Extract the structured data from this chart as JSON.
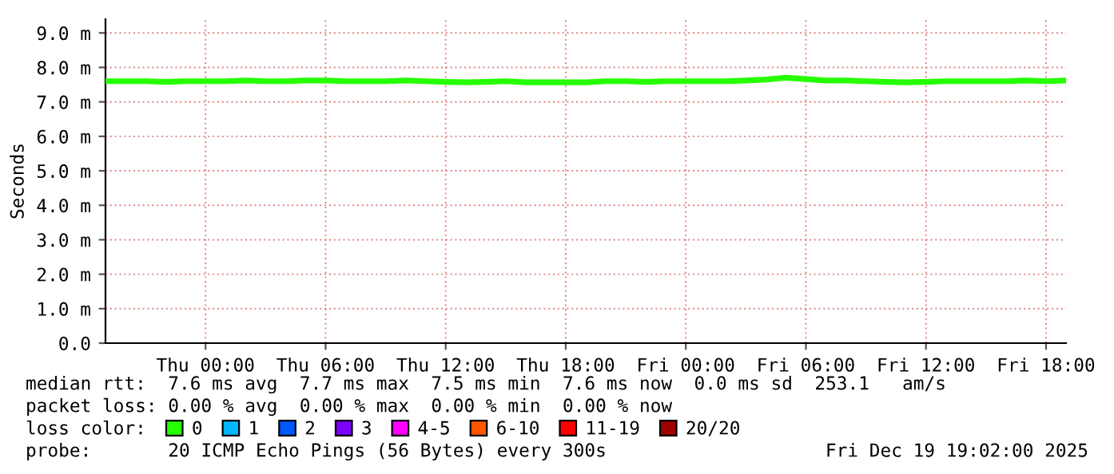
{
  "chart_data": {
    "type": "line",
    "ylabel": "Seconds",
    "x": [
      "2025-12-17T19:00",
      "2025-12-17T20:00",
      "2025-12-17T21:00",
      "2025-12-17T22:00",
      "2025-12-17T23:00",
      "2025-12-18T00:00",
      "2025-12-18T01:00",
      "2025-12-18T02:00",
      "2025-12-18T03:00",
      "2025-12-18T04:00",
      "2025-12-18T05:00",
      "2025-12-18T06:00",
      "2025-12-18T07:00",
      "2025-12-18T08:00",
      "2025-12-18T09:00",
      "2025-12-18T10:00",
      "2025-12-18T11:00",
      "2025-12-18T12:00",
      "2025-12-18T13:00",
      "2025-12-18T14:00",
      "2025-12-18T15:00",
      "2025-12-18T16:00",
      "2025-12-18T17:00",
      "2025-12-18T18:00",
      "2025-12-18T19:00",
      "2025-12-18T20:00",
      "2025-12-18T21:00",
      "2025-12-18T22:00",
      "2025-12-18T23:00",
      "2025-12-19T00:00",
      "2025-12-19T01:00",
      "2025-12-19T02:00",
      "2025-12-19T03:00",
      "2025-12-19T04:00",
      "2025-12-19T05:00",
      "2025-12-19T06:00",
      "2025-12-19T07:00",
      "2025-12-19T08:00",
      "2025-12-19T09:00",
      "2025-12-19T10:00",
      "2025-12-19T11:00",
      "2025-12-19T12:00",
      "2025-12-19T13:00",
      "2025-12-19T14:00",
      "2025-12-19T15:00",
      "2025-12-19T16:00",
      "2025-12-19T17:00",
      "2025-12-19T18:00",
      "2025-12-19T19:00"
    ],
    "series": [
      {
        "name": "0",
        "color": "#26ff00",
        "values": [
          7.6,
          7.6,
          7.6,
          7.58,
          7.6,
          7.6,
          7.6,
          7.62,
          7.6,
          7.6,
          7.62,
          7.62,
          7.6,
          7.6,
          7.6,
          7.62,
          7.6,
          7.58,
          7.57,
          7.58,
          7.6,
          7.57,
          7.57,
          7.57,
          7.57,
          7.6,
          7.6,
          7.58,
          7.6,
          7.6,
          7.6,
          7.6,
          7.62,
          7.65,
          7.7,
          7.66,
          7.62,
          7.62,
          7.6,
          7.58,
          7.57,
          7.58,
          7.6,
          7.6,
          7.6,
          7.6,
          7.62,
          7.6,
          7.62
        ]
      },
      {
        "name": "1",
        "color": "#00b8ff",
        "values": [
          null,
          null,
          null,
          null,
          null,
          null,
          null,
          null,
          null,
          null,
          null,
          null,
          null,
          null,
          null,
          null,
          null,
          null,
          null,
          null,
          null,
          null,
          null,
          null,
          null,
          null,
          null,
          null,
          null,
          null,
          null,
          null,
          null,
          null,
          null,
          null,
          null,
          null,
          null,
          null,
          null,
          null,
          null,
          null,
          null,
          null,
          null,
          null,
          null
        ]
      },
      {
        "name": "2",
        "color": "#0059ff",
        "values": [
          null,
          null,
          null,
          null,
          null,
          null,
          null,
          null,
          null,
          null,
          null,
          null,
          null,
          null,
          null,
          null,
          null,
          null,
          null,
          null,
          null,
          null,
          null,
          null,
          null,
          null,
          null,
          null,
          null,
          null,
          null,
          null,
          null,
          null,
          null,
          null,
          null,
          null,
          null,
          null,
          null,
          null,
          null,
          null,
          null,
          null,
          null,
          null,
          null
        ]
      },
      {
        "name": "3",
        "color": "#7e00ff",
        "values": [
          null,
          null,
          null,
          null,
          null,
          null,
          null,
          null,
          null,
          null,
          null,
          null,
          null,
          null,
          null,
          null,
          null,
          null,
          null,
          null,
          null,
          null,
          null,
          null,
          null,
          null,
          null,
          null,
          null,
          null,
          null,
          null,
          null,
          null,
          null,
          null,
          null,
          null,
          null,
          null,
          null,
          null,
          null,
          null,
          null,
          null,
          null,
          null,
          null
        ]
      },
      {
        "name": "4-5",
        "color": "#ff00ff",
        "values": [
          null,
          null,
          null,
          null,
          null,
          null,
          null,
          null,
          null,
          null,
          null,
          null,
          null,
          null,
          null,
          null,
          null,
          null,
          null,
          null,
          null,
          null,
          null,
          null,
          null,
          null,
          null,
          null,
          null,
          null,
          null,
          null,
          null,
          null,
          null,
          null,
          null,
          null,
          null,
          null,
          null,
          null,
          null,
          null,
          null,
          null,
          null,
          null,
          null
        ]
      },
      {
        "name": "6-10",
        "color": "#ff5500",
        "values": [
          null,
          null,
          null,
          null,
          null,
          null,
          null,
          null,
          null,
          null,
          null,
          null,
          null,
          null,
          null,
          null,
          null,
          null,
          null,
          null,
          null,
          null,
          null,
          null,
          null,
          null,
          null,
          null,
          null,
          null,
          null,
          null,
          null,
          null,
          null,
          null,
          null,
          null,
          null,
          null,
          null,
          null,
          null,
          null,
          null,
          null,
          null,
          null,
          null
        ]
      },
      {
        "name": "11-19",
        "color": "#ff0000",
        "values": [
          null,
          null,
          null,
          null,
          null,
          null,
          null,
          null,
          null,
          null,
          null,
          null,
          null,
          null,
          null,
          null,
          null,
          null,
          null,
          null,
          null,
          null,
          null,
          null,
          null,
          null,
          null,
          null,
          null,
          null,
          null,
          null,
          null,
          null,
          null,
          null,
          null,
          null,
          null,
          null,
          null,
          null,
          null,
          null,
          null,
          null,
          null,
          null,
          null
        ]
      },
      {
        "name": "20/20",
        "color": "#a10000",
        "values": [
          null,
          null,
          null,
          null,
          null,
          null,
          null,
          null,
          null,
          null,
          null,
          null,
          null,
          null,
          null,
          null,
          null,
          null,
          null,
          null,
          null,
          null,
          null,
          null,
          null,
          null,
          null,
          null,
          null,
          null,
          null,
          null,
          null,
          null,
          null,
          null,
          null,
          null,
          null,
          null,
          null,
          null,
          null,
          null,
          null,
          null,
          null,
          null,
          null
        ]
      }
    ],
    "legend_title": "loss color:",
    "legend": "bottom",
    "xlim": [
      "2025-12-17T19:00",
      "2025-12-19T19:00"
    ],
    "xticks": [
      {
        "value": "2025-12-18T00:00",
        "label": "Thu 00:00"
      },
      {
        "value": "2025-12-18T06:00",
        "label": "Thu 06:00"
      },
      {
        "value": "2025-12-18T12:00",
        "label": "Thu 12:00"
      },
      {
        "value": "2025-12-18T18:00",
        "label": "Thu 18:00"
      },
      {
        "value": "2025-12-19T00:00",
        "label": "Fri 00:00"
      },
      {
        "value": "2025-12-19T06:00",
        "label": "Fri 06:00"
      },
      {
        "value": "2025-12-19T12:00",
        "label": "Fri 12:00"
      },
      {
        "value": "2025-12-19T18:00",
        "label": "Fri 18:00"
      }
    ],
    "ylim": [
      0,
      9.4
    ],
    "yticks": [
      {
        "value": 0,
        "label": "0.0"
      },
      {
        "value": 1,
        "label": "1.0 m"
      },
      {
        "value": 2,
        "label": "2.0 m"
      },
      {
        "value": 3,
        "label": "3.0 m"
      },
      {
        "value": 4,
        "label": "4.0 m"
      },
      {
        "value": 5,
        "label": "5.0 m"
      },
      {
        "value": 6,
        "label": "6.0 m"
      },
      {
        "value": 7,
        "label": "7.0 m"
      },
      {
        "value": 8,
        "label": "8.0 m"
      },
      {
        "value": 9,
        "label": "9.0 m"
      }
    ],
    "grid": true,
    "marker": "none",
    "line_style": "solid",
    "annotations": [
      "median rtt:  7.6 ms avg  7.7 ms max  7.5 ms min  7.6 ms now  0.0 ms sd  253.1   am/s",
      "packet loss: 0.00 % avg  0.00 % max  0.00 % min  0.00 % now",
      "probe:       20 ICMP Echo Pings (56 Bytes) every 300s",
      "Fri Dec 19 19:02:00 2025"
    ]
  }
}
